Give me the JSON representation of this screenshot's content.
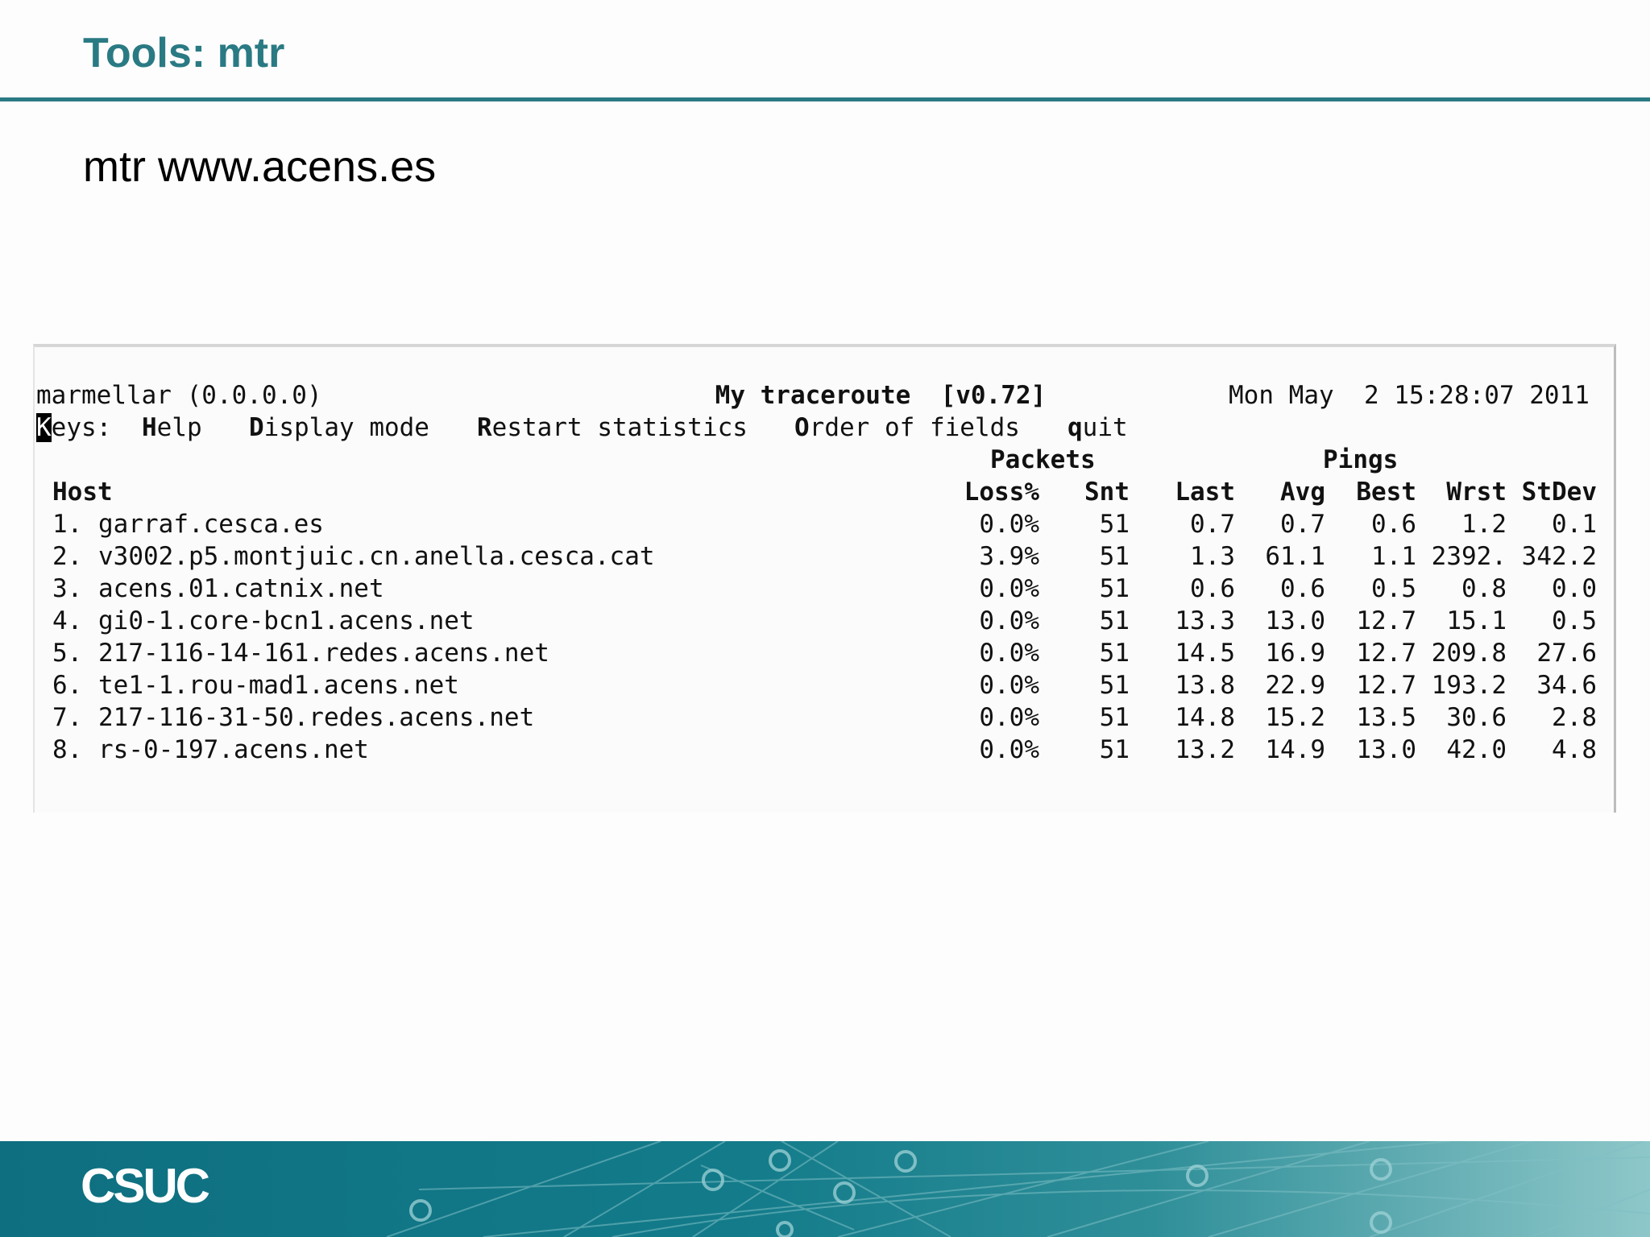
{
  "slide": {
    "title": "Tools: mtr",
    "command": "mtr www.acens.es"
  },
  "terminal": {
    "title": "My traceroute  [v0.72]",
    "hostname": "marmellar (0.0.0.0)",
    "datetime": "Mon May  2 15:28:07 2011",
    "keys_label": "eys:",
    "keys_cursor_char": "K",
    "keys": [
      {
        "key": "H",
        "rest": "elp"
      },
      {
        "key": "D",
        "rest": "isplay mode"
      },
      {
        "key": "R",
        "rest": "estart statistics"
      },
      {
        "key": "O",
        "rest": "rder of fields"
      },
      {
        "key": "q",
        "rest": "uit"
      }
    ],
    "group_packets": "Packets",
    "group_pings": "Pings",
    "columns": {
      "host": "Host",
      "loss": "Loss%",
      "snt": "Snt",
      "last": "Last",
      "avg": "Avg",
      "best": "Best",
      "wrst": "Wrst",
      "stdev": "StDev"
    },
    "rows": [
      {
        "num": "1.",
        "host": "garraf.cesca.es",
        "loss": "0.0%",
        "snt": "51",
        "last": "0.7",
        "avg": "0.7",
        "best": "0.6",
        "wrst": "1.2",
        "stdev": "0.1"
      },
      {
        "num": "2.",
        "host": "v3002.p5.montjuic.cn.anella.cesca.cat",
        "loss": "3.9%",
        "snt": "51",
        "last": "1.3",
        "avg": "61.1",
        "best": "1.1",
        "wrst": "2392.",
        "stdev": "342.2"
      },
      {
        "num": "3.",
        "host": "acens.01.catnix.net",
        "loss": "0.0%",
        "snt": "51",
        "last": "0.6",
        "avg": "0.6",
        "best": "0.5",
        "wrst": "0.8",
        "stdev": "0.0"
      },
      {
        "num": "4.",
        "host": "gi0-1.core-bcn1.acens.net",
        "loss": "0.0%",
        "snt": "51",
        "last": "13.3",
        "avg": "13.0",
        "best": "12.7",
        "wrst": "15.1",
        "stdev": "0.5"
      },
      {
        "num": "5.",
        "host": "217-116-14-161.redes.acens.net",
        "loss": "0.0%",
        "snt": "51",
        "last": "14.5",
        "avg": "16.9",
        "best": "12.7",
        "wrst": "209.8",
        "stdev": "27.6"
      },
      {
        "num": "6.",
        "host": "te1-1.rou-mad1.acens.net",
        "loss": "0.0%",
        "snt": "51",
        "last": "13.8",
        "avg": "22.9",
        "best": "12.7",
        "wrst": "193.2",
        "stdev": "34.6"
      },
      {
        "num": "7.",
        "host": "217-116-31-50.redes.acens.net",
        "loss": "0.0%",
        "snt": "51",
        "last": "14.8",
        "avg": "15.2",
        "best": "13.5",
        "wrst": "30.6",
        "stdev": "2.8"
      },
      {
        "num": "8.",
        "host": "rs-0-197.acens.net",
        "loss": "0.0%",
        "snt": "51",
        "last": "13.2",
        "avg": "14.9",
        "best": "13.0",
        "wrst": "42.0",
        "stdev": "4.8"
      }
    ]
  },
  "footer": {
    "logo_text": "CSUC"
  },
  "colors": {
    "accent": "#2a7a84",
    "footer": "#137b8a"
  }
}
